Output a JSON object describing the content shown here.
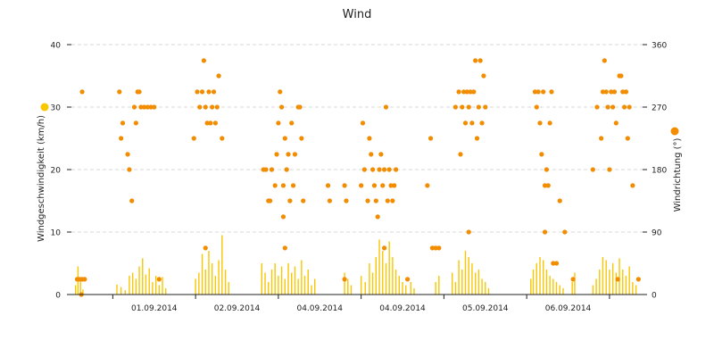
{
  "chart_data": {
    "type": "scatter",
    "title": "Wind",
    "colors": {
      "speed": "#f9c600",
      "direction": "#f28c00",
      "grid": "#d8d8d8",
      "axis": "#222222"
    },
    "x_labels": [
      "01.09.2014",
      "02.09.2014",
      "04.09.2014",
      "04.09.2014",
      "05.09.2014",
      "06.09.2014"
    ],
    "y_left": {
      "label": "Windgeschwindigkeit (km/h)",
      "min": 0,
      "max": 40,
      "ticks": [
        "0",
        "10",
        "20",
        "30",
        "40"
      ]
    },
    "y_right": {
      "label": "Windrichtung (°)",
      "min": 0,
      "max": 360,
      "ticks": [
        "0",
        "90",
        "180",
        "270",
        "360"
      ]
    },
    "x_range": [
      0,
      6.9
    ],
    "series": [
      {
        "key": "speed",
        "values": [
          [
            0.05,
            1.5
          ],
          [
            0.08,
            4.5
          ],
          [
            0.11,
            2.5
          ],
          [
            0.14,
            0.8
          ],
          [
            0.55,
            1.6
          ],
          [
            0.6,
            1.2
          ],
          [
            0.65,
            0.7
          ],
          [
            0.7,
            3.0
          ],
          [
            0.74,
            3.5
          ],
          [
            0.78,
            2.5
          ],
          [
            0.82,
            4.5
          ],
          [
            0.86,
            5.8
          ],
          [
            0.9,
            3.2
          ],
          [
            0.94,
            4.2
          ],
          [
            0.98,
            2.0
          ],
          [
            1.02,
            3.0
          ],
          [
            1.06,
            1.5
          ],
          [
            1.1,
            2.8
          ],
          [
            1.14,
            1.0
          ],
          [
            1.5,
            2.5
          ],
          [
            1.54,
            3.5
          ],
          [
            1.58,
            6.5
          ],
          [
            1.62,
            4.0
          ],
          [
            1.66,
            7.0
          ],
          [
            1.7,
            5.0
          ],
          [
            1.74,
            3.0
          ],
          [
            1.78,
            5.5
          ],
          [
            1.82,
            9.5
          ],
          [
            1.86,
            4.0
          ],
          [
            1.9,
            2.0
          ],
          [
            2.3,
            5.0
          ],
          [
            2.34,
            3.5
          ],
          [
            2.38,
            2.0
          ],
          [
            2.42,
            4.0
          ],
          [
            2.46,
            5.0
          ],
          [
            2.5,
            3.0
          ],
          [
            2.54,
            4.5
          ],
          [
            2.58,
            2.5
          ],
          [
            2.62,
            5.0
          ],
          [
            2.66,
            3.5
          ],
          [
            2.7,
            4.5
          ],
          [
            2.74,
            2.5
          ],
          [
            2.78,
            5.5
          ],
          [
            2.82,
            3.0
          ],
          [
            2.86,
            4.0
          ],
          [
            2.9,
            1.5
          ],
          [
            2.94,
            2.5
          ],
          [
            3.3,
            3.5
          ],
          [
            3.34,
            2.5
          ],
          [
            3.38,
            1.5
          ],
          [
            3.5,
            3.0
          ],
          [
            3.55,
            2.0
          ],
          [
            3.6,
            5.0
          ],
          [
            3.64,
            3.5
          ],
          [
            3.68,
            6.0
          ],
          [
            3.72,
            8.8
          ],
          [
            3.76,
            7.0
          ],
          [
            3.8,
            5.0
          ],
          [
            3.84,
            8.5
          ],
          [
            3.88,
            6.0
          ],
          [
            3.92,
            4.0
          ],
          [
            3.96,
            3.0
          ],
          [
            4.0,
            2.0
          ],
          [
            4.04,
            1.5
          ],
          [
            4.1,
            2.0
          ],
          [
            4.14,
            1.0
          ],
          [
            4.4,
            2.0
          ],
          [
            4.44,
            3.0
          ],
          [
            4.6,
            3.5
          ],
          [
            4.64,
            2.0
          ],
          [
            4.68,
            5.5
          ],
          [
            4.72,
            4.0
          ],
          [
            4.76,
            7.0
          ],
          [
            4.8,
            6.0
          ],
          [
            4.84,
            5.0
          ],
          [
            4.88,
            3.5
          ],
          [
            4.92,
            4.0
          ],
          [
            4.96,
            2.5
          ],
          [
            5.0,
            2.0
          ],
          [
            5.04,
            1.0
          ],
          [
            5.55,
            2.5
          ],
          [
            5.58,
            4.0
          ],
          [
            5.62,
            5.0
          ],
          [
            5.66,
            6.0
          ],
          [
            5.7,
            5.5
          ],
          [
            5.74,
            4.0
          ],
          [
            5.78,
            3.0
          ],
          [
            5.82,
            2.5
          ],
          [
            5.86,
            2.0
          ],
          [
            5.9,
            1.5
          ],
          [
            5.94,
            1.0
          ],
          [
            6.05,
            2.0
          ],
          [
            6.08,
            3.5
          ],
          [
            6.3,
            1.5
          ],
          [
            6.34,
            2.5
          ],
          [
            6.38,
            4.0
          ],
          [
            6.42,
            6.0
          ],
          [
            6.46,
            5.5
          ],
          [
            6.5,
            4.0
          ],
          [
            6.54,
            5.0
          ],
          [
            6.58,
            3.5
          ],
          [
            6.62,
            5.8
          ],
          [
            6.66,
            4.0
          ],
          [
            6.7,
            3.0
          ],
          [
            6.74,
            4.5
          ],
          [
            6.78,
            2.0
          ],
          [
            6.82,
            1.5
          ]
        ]
      },
      {
        "key": "direction",
        "values": [
          [
            0.07,
            22
          ],
          [
            0.1,
            22
          ],
          [
            0.13,
            22
          ],
          [
            0.16,
            22
          ],
          [
            0.12,
            0
          ],
          [
            0.13,
            292
          ],
          [
            0.58,
            292
          ],
          [
            0.62,
            247
          ],
          [
            0.6,
            225
          ],
          [
            0.68,
            202
          ],
          [
            0.7,
            180
          ],
          [
            0.73,
            135
          ],
          [
            0.76,
            270
          ],
          [
            0.8,
            292
          ],
          [
            0.82,
            292
          ],
          [
            0.84,
            270
          ],
          [
            0.88,
            270
          ],
          [
            0.92,
            270
          ],
          [
            0.96,
            270
          ],
          [
            1.0,
            270
          ],
          [
            1.06,
            22
          ],
          [
            0.78,
            247
          ],
          [
            1.48,
            225
          ],
          [
            1.52,
            292
          ],
          [
            1.55,
            270
          ],
          [
            1.58,
            292
          ],
          [
            1.6,
            337
          ],
          [
            1.62,
            270
          ],
          [
            1.64,
            247
          ],
          [
            1.66,
            292
          ],
          [
            1.68,
            247
          ],
          [
            1.7,
            270
          ],
          [
            1.72,
            292
          ],
          [
            1.74,
            247
          ],
          [
            1.76,
            270
          ],
          [
            1.78,
            315
          ],
          [
            1.82,
            225
          ],
          [
            1.62,
            67
          ],
          [
            2.32,
            180
          ],
          [
            2.35,
            180
          ],
          [
            2.38,
            135
          ],
          [
            2.4,
            135
          ],
          [
            2.42,
            180
          ],
          [
            2.46,
            157
          ],
          [
            2.48,
            202
          ],
          [
            2.5,
            247
          ],
          [
            2.52,
            292
          ],
          [
            2.54,
            270
          ],
          [
            2.56,
            157
          ],
          [
            2.58,
            225
          ],
          [
            2.6,
            180
          ],
          [
            2.62,
            202
          ],
          [
            2.64,
            135
          ],
          [
            2.66,
            247
          ],
          [
            2.68,
            157
          ],
          [
            2.7,
            202
          ],
          [
            2.74,
            270
          ],
          [
            2.76,
            270
          ],
          [
            2.78,
            225
          ],
          [
            2.8,
            135
          ],
          [
            2.56,
            112
          ],
          [
            2.58,
            67
          ],
          [
            3.1,
            157
          ],
          [
            3.12,
            135
          ],
          [
            3.3,
            157
          ],
          [
            3.32,
            135
          ],
          [
            3.5,
            157
          ],
          [
            3.52,
            247
          ],
          [
            3.54,
            180
          ],
          [
            3.58,
            135
          ],
          [
            3.6,
            225
          ],
          [
            3.62,
            202
          ],
          [
            3.64,
            180
          ],
          [
            3.66,
            157
          ],
          [
            3.68,
            135
          ],
          [
            3.7,
            112
          ],
          [
            3.72,
            180
          ],
          [
            3.74,
            202
          ],
          [
            3.76,
            157
          ],
          [
            3.78,
            180
          ],
          [
            3.8,
            270
          ],
          [
            3.82,
            135
          ],
          [
            3.84,
            180
          ],
          [
            3.86,
            157
          ],
          [
            3.88,
            135
          ],
          [
            3.9,
            157
          ],
          [
            3.92,
            180
          ],
          [
            3.78,
            67
          ],
          [
            3.3,
            22
          ],
          [
            4.06,
            22
          ],
          [
            4.3,
            157
          ],
          [
            4.34,
            225
          ],
          [
            4.36,
            67
          ],
          [
            4.4,
            67
          ],
          [
            4.44,
            67
          ],
          [
            4.64,
            270
          ],
          [
            4.68,
            292
          ],
          [
            4.7,
            202
          ],
          [
            4.72,
            270
          ],
          [
            4.74,
            292
          ],
          [
            4.76,
            247
          ],
          [
            4.78,
            292
          ],
          [
            4.8,
            270
          ],
          [
            4.82,
            292
          ],
          [
            4.84,
            247
          ],
          [
            4.86,
            292
          ],
          [
            4.88,
            337
          ],
          [
            4.9,
            225
          ],
          [
            4.92,
            270
          ],
          [
            4.94,
            337
          ],
          [
            4.96,
            247
          ],
          [
            4.98,
            315
          ],
          [
            5.0,
            270
          ],
          [
            4.8,
            90
          ],
          [
            5.6,
            292
          ],
          [
            5.62,
            270
          ],
          [
            5.64,
            292
          ],
          [
            5.66,
            247
          ],
          [
            5.68,
            202
          ],
          [
            5.7,
            292
          ],
          [
            5.72,
            157
          ],
          [
            5.74,
            180
          ],
          [
            5.76,
            157
          ],
          [
            5.78,
            247
          ],
          [
            5.8,
            292
          ],
          [
            5.82,
            45
          ],
          [
            5.86,
            45
          ],
          [
            5.9,
            135
          ],
          [
            5.96,
            90
          ],
          [
            5.72,
            90
          ],
          [
            6.06,
            22
          ],
          [
            6.3,
            180
          ],
          [
            6.35,
            270
          ],
          [
            6.4,
            225
          ],
          [
            6.42,
            292
          ],
          [
            6.44,
            337
          ],
          [
            6.46,
            292
          ],
          [
            6.48,
            270
          ],
          [
            6.5,
            180
          ],
          [
            6.52,
            292
          ],
          [
            6.54,
            270
          ],
          [
            6.56,
            292
          ],
          [
            6.58,
            247
          ],
          [
            6.62,
            315
          ],
          [
            6.64,
            315
          ],
          [
            6.66,
            292
          ],
          [
            6.68,
            270
          ],
          [
            6.7,
            292
          ],
          [
            6.72,
            225
          ],
          [
            6.74,
            270
          ],
          [
            6.78,
            157
          ],
          [
            6.85,
            22
          ],
          [
            6.6,
            22
          ]
        ]
      }
    ]
  }
}
